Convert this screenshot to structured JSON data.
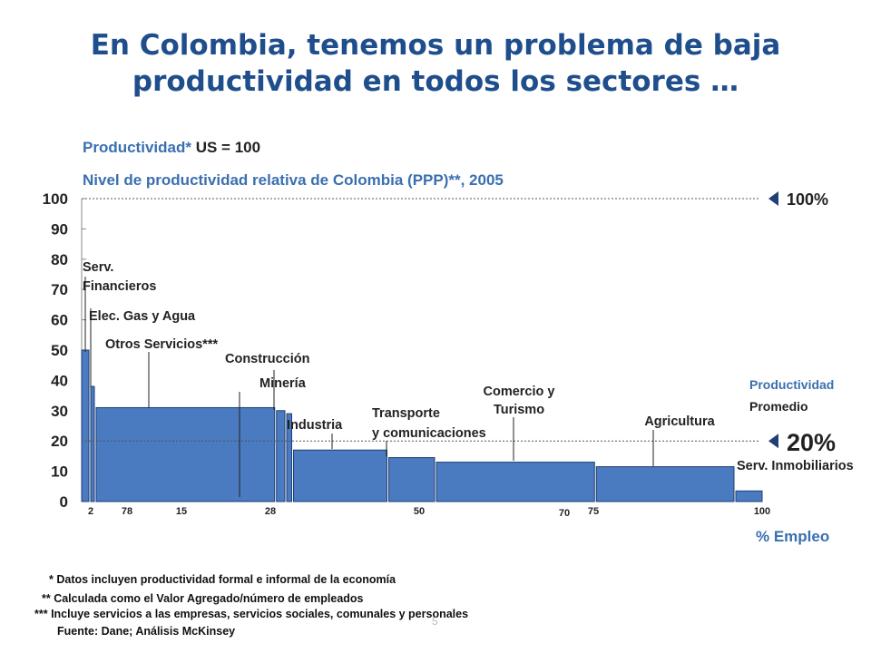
{
  "slide": {
    "title_line1": "En Colombia, tenemos un problema de baja",
    "title_line2": "productividad en todos los sectores …",
    "subtitle1_label": "Productividad*",
    "subtitle1_value": "US = 100",
    "subtitle2": "Nivel de productividad relativa de Colombia (PPP)**, 2005",
    "page_number": "5"
  },
  "footnotes": [
    "* Datos incluyen productividad formal e informal de la economía",
    "** Calculada como el Valor Agregado/número de empleados",
    "*** Incluye servicios a las empresas, servicios sociales, comunales y personales",
    "Fuente: Dane; Análisis McKinsey"
  ],
  "chart_data": {
    "type": "bar",
    "variant": "marimekko",
    "xlabel": "% Empleo",
    "ylim": [
      0,
      100
    ],
    "xlim": [
      0,
      100
    ],
    "y_ticks": [
      "0",
      "10",
      "20",
      "30",
      "40",
      "50",
      "60",
      "70",
      "80",
      "90",
      "100"
    ],
    "x_tick_labels": [
      "2",
      "78",
      "15",
      "28",
      "50",
      "70",
      "75",
      "100"
    ],
    "bar_color": "#4a7abf",
    "reference_lines": [
      {
        "value": 100,
        "label": "100%"
      },
      {
        "value": 20,
        "label": "20%",
        "caption": [
          "Productividad",
          "Promedio"
        ]
      }
    ],
    "series": [
      {
        "name": "Serv. Financieros",
        "x_start": 0,
        "x_end": 1.2,
        "value": 50
      },
      {
        "name": "Elec. Gas y Agua",
        "x_start": 1.2,
        "x_end": 2,
        "value": 38
      },
      {
        "name": "Otros Servicios***",
        "x_start": 2,
        "x_end": 28.5,
        "value": 31
      },
      {
        "name": "Construcción",
        "x_start": 28.5,
        "x_end": 30,
        "value": 30
      },
      {
        "name": "Minería",
        "x_start": 30,
        "x_end": 31,
        "value": 29
      },
      {
        "name": "Industria",
        "x_start": 31,
        "x_end": 45,
        "value": 17
      },
      {
        "name": "Transporte y comunicaciones",
        "x_start": 45,
        "x_end": 52,
        "value": 14.5
      },
      {
        "name": "Comercio y Turismo",
        "x_start": 52,
        "x_end": 75.5,
        "value": 13
      },
      {
        "name": "Agricultura",
        "x_start": 75.5,
        "x_end": 96,
        "value": 11.5
      },
      {
        "name": "Serv. Inmobiliarios",
        "x_start": 96,
        "x_end": 100,
        "value": 3.5
      }
    ],
    "bar_labels": [
      [
        "Serv.",
        "Financieros"
      ],
      [
        "Elec. Gas y Agua"
      ],
      [
        "Otros Servicios***"
      ],
      [
        "Construcción"
      ],
      [
        "Minería"
      ],
      [
        "Industria"
      ],
      [
        "Transporte",
        "y comunicaciones"
      ],
      [
        "Comercio y",
        "Turismo"
      ],
      [
        "Agricultura"
      ],
      [
        "Serv. Inmobiliarios"
      ]
    ]
  }
}
